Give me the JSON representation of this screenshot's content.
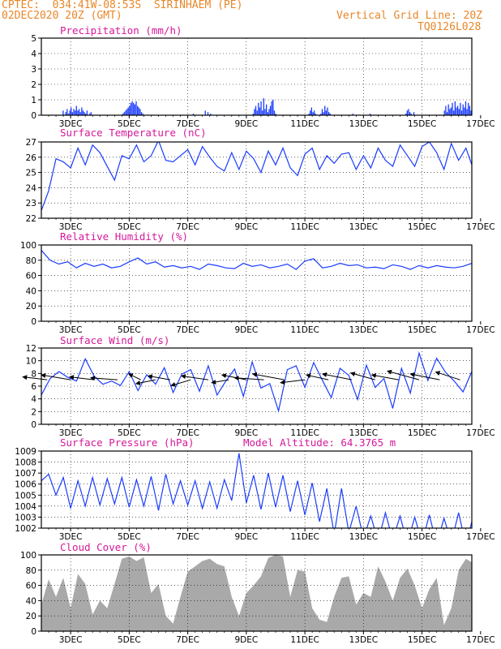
{
  "header": {
    "source": "CPTEC:  034:41W-08:53S  SIRINHAEM (PE)",
    "datetime": "02DEC2020 20Z (GMT)",
    "grid_note": "Vertical Grid Line: 20Z",
    "code": "TQ0126L028"
  },
  "colors": {
    "line": "#1a3cff",
    "title": "#d6189a",
    "header": "#e8872a",
    "cloud": "#a9a9a9",
    "wind": "#000000"
  },
  "chart_data": [
    {
      "name": "precipitation",
      "type": "bar",
      "title": "Precipitation (mm/h)",
      "x_ticks": [
        "3DEC",
        "5DEC",
        "7DEC",
        "9DEC",
        "11DEC",
        "13DEC",
        "15DEC",
        "17DEC"
      ],
      "xlim": [
        0,
        14.7
      ],
      "ylim": [
        0,
        5
      ],
      "y_ticks": [
        0,
        1,
        2,
        3,
        4,
        5
      ],
      "grid": true,
      "values": [
        0,
        0,
        0,
        0,
        0,
        0,
        0,
        0,
        0,
        0,
        0,
        0,
        0,
        0,
        0,
        0,
        0.3,
        0,
        0.2,
        0.4,
        0.1,
        0.3,
        0.5,
        0.2,
        0.4,
        0.3,
        0.6,
        0.3,
        0.4,
        0.2,
        0.5,
        0.3,
        0.2,
        0.1,
        0.3,
        0,
        0.1,
        0.2,
        0,
        0,
        0,
        0,
        0,
        0,
        0,
        0,
        0,
        0,
        0,
        0,
        0,
        0,
        0,
        0,
        0,
        0,
        0,
        0,
        0,
        0,
        0,
        0.1,
        0.2,
        0.3,
        0.4,
        0.5,
        0.6,
        0.8,
        0.9,
        0.8,
        0.7,
        0.9,
        0.6,
        0.5,
        0.4,
        0.2,
        0.1,
        0,
        0,
        0,
        0,
        0,
        0,
        0,
        0,
        0,
        0,
        0,
        0,
        0,
        0,
        0,
        0,
        0,
        0,
        0,
        0,
        0,
        0,
        0,
        0,
        0,
        0,
        0,
        0,
        0,
        0,
        0,
        0,
        0,
        0,
        0,
        0,
        0,
        0.1,
        0,
        0,
        0,
        0,
        0,
        0,
        0,
        0,
        0.3,
        0,
        0.2,
        0,
        0.1,
        0,
        0,
        0,
        0,
        0,
        0,
        0,
        0,
        0,
        0,
        0,
        0,
        0,
        0,
        0,
        0,
        0,
        0,
        0,
        0,
        0,
        0,
        0,
        0,
        0,
        0,
        0,
        0,
        0,
        0,
        0,
        0.1,
        0.4,
        0.6,
        0.3,
        0.8,
        0.5,
        0.9,
        0.3,
        1.1,
        0.4,
        0.7,
        0.2,
        0.4,
        0.6,
        0.9,
        1.0,
        0.3,
        0.1,
        0,
        0,
        0,
        0,
        0,
        0,
        0,
        0,
        0,
        0,
        0,
        0,
        0,
        0,
        0,
        0,
        0,
        0,
        0,
        0,
        0,
        0,
        0,
        0,
        0.1,
        0.3,
        0.5,
        0.2,
        0.3,
        0.1,
        0,
        0,
        0,
        0.1,
        0.4,
        0.2,
        0.6,
        0.3,
        0.5,
        0.2,
        0.1,
        0,
        0,
        0,
        0,
        0,
        0,
        0,
        0,
        0,
        0,
        0,
        0,
        0,
        0,
        0,
        0,
        0.1,
        0,
        0,
        0,
        0,
        0,
        0,
        0,
        0,
        0,
        0,
        0,
        0,
        0.1,
        0,
        0,
        0,
        0,
        0,
        0,
        0,
        0,
        0,
        0,
        0,
        0,
        0,
        0,
        0,
        0,
        0,
        0,
        0,
        0,
        0,
        0,
        0,
        0,
        0,
        0,
        0.1,
        0.3,
        0.4,
        0.2,
        0.1,
        0,
        0.2,
        0,
        0,
        0,
        0,
        0,
        0,
        0,
        0,
        0,
        0,
        0,
        0,
        0,
        0,
        0,
        0,
        0,
        0,
        0,
        0,
        0,
        0,
        0.3,
        0.6,
        0.2,
        0.7,
        0.4,
        0.5,
        0.8,
        0.3,
        0.9,
        0.5,
        0.6,
        0.4,
        0.8,
        0.3,
        0.7,
        0.5,
        0.9,
        0.4,
        0.8,
        0.6,
        0.3
      ]
    },
    {
      "name": "surface-temperature",
      "type": "line",
      "title": "Surface Temperature (nC)",
      "x_ticks": [
        "3DEC",
        "5DEC",
        "7DEC",
        "9DEC",
        "11DEC",
        "13DEC",
        "15DEC",
        "17DEC"
      ],
      "xlim": [
        0,
        14.7
      ],
      "ylim": [
        22,
        27
      ],
      "y_ticks": [
        22,
        23,
        24,
        25,
        26,
        27
      ],
      "grid": true,
      "x": [
        0,
        0.25,
        0.5,
        0.75,
        1.0,
        1.25,
        1.5,
        1.75,
        2.0,
        2.25,
        2.5,
        2.75,
        3.0,
        3.25,
        3.5,
        3.75,
        4.0,
        4.25,
        4.5,
        4.75,
        5.0,
        5.25,
        5.5,
        5.75,
        6.0,
        6.25,
        6.5,
        6.75,
        7.0,
        7.25,
        7.5,
        7.75,
        8.0,
        8.25,
        8.5,
        8.75,
        9.0,
        9.25,
        9.5,
        9.75,
        10.0,
        10.25,
        10.5,
        10.75,
        11.0,
        11.25,
        11.5,
        11.75,
        12.0,
        12.25,
        12.5,
        12.75,
        13.0,
        13.25,
        13.5,
        13.75,
        14.0,
        14.25,
        14.5,
        14.7
      ],
      "values": [
        22.5,
        23.8,
        25.9,
        25.7,
        25.3,
        26.6,
        25.5,
        26.8,
        26.3,
        25.4,
        24.5,
        26.1,
        25.9,
        26.8,
        25.7,
        26.1,
        27.1,
        25.8,
        25.7,
        26.1,
        26.5,
        25.5,
        26.7,
        26.0,
        25.4,
        25.1,
        26.3,
        25.2,
        26.4,
        25.9,
        25.0,
        26.4,
        25.5,
        26.6,
        25.3,
        24.8,
        26.2,
        26.6,
        25.2,
        26.1,
        25.6,
        26.2,
        26.3,
        25.2,
        26.1,
        25.3,
        26.6,
        25.8,
        25.4,
        26.8,
        26.1,
        25.4,
        26.7,
        27.0,
        26.3,
        25.2,
        26.9,
        25.8,
        26.6,
        25.5
      ]
    },
    {
      "name": "relative-humidity",
      "type": "line",
      "title": "Relative Humidity (%)",
      "x_ticks": [
        "3DEC",
        "5DEC",
        "7DEC",
        "9DEC",
        "11DEC",
        "13DEC",
        "15DEC",
        "17DEC"
      ],
      "xlim": [
        0,
        14.7
      ],
      "ylim": [
        0,
        100
      ],
      "y_ticks": [
        0,
        20,
        40,
        60,
        80,
        100
      ],
      "grid": true,
      "x": [
        0,
        0.3,
        0.6,
        0.9,
        1.2,
        1.5,
        1.8,
        2.1,
        2.4,
        2.7,
        3.0,
        3.3,
        3.6,
        3.9,
        4.2,
        4.5,
        4.8,
        5.1,
        5.4,
        5.7,
        6.0,
        6.3,
        6.6,
        6.9,
        7.2,
        7.5,
        7.8,
        8.1,
        8.4,
        8.7,
        9.0,
        9.3,
        9.6,
        9.9,
        10.2,
        10.5,
        10.8,
        11.1,
        11.4,
        11.7,
        12.0,
        12.3,
        12.6,
        12.9,
        13.2,
        13.5,
        13.8,
        14.1,
        14.4,
        14.7
      ],
      "values": [
        93,
        80,
        75,
        78,
        70,
        76,
        72,
        75,
        70,
        72,
        78,
        83,
        75,
        78,
        71,
        73,
        70,
        72,
        68,
        75,
        73,
        70,
        69,
        76,
        72,
        74,
        70,
        72,
        75,
        68,
        79,
        82,
        70,
        72,
        76,
        73,
        74,
        70,
        71,
        69,
        74,
        72,
        68,
        73,
        70,
        73,
        71,
        70,
        72,
        76
      ]
    },
    {
      "name": "surface-wind",
      "type": "line",
      "title": "Surface Wind (m/s)",
      "x_ticks": [
        "3DEC",
        "5DEC",
        "7DEC",
        "9DEC",
        "11DEC",
        "13DEC",
        "15DEC",
        "17DEC"
      ],
      "xlim": [
        0,
        14.7
      ],
      "ylim": [
        0,
        12
      ],
      "y_ticks": [
        0,
        2,
        4,
        6,
        8,
        10,
        12
      ],
      "grid": true,
      "x": [
        0,
        0.3,
        0.6,
        0.9,
        1.2,
        1.5,
        1.8,
        2.1,
        2.4,
        2.7,
        3.0,
        3.3,
        3.6,
        3.9,
        4.2,
        4.5,
        4.8,
        5.1,
        5.4,
        5.7,
        6.0,
        6.3,
        6.6,
        6.9,
        7.2,
        7.5,
        7.8,
        8.1,
        8.4,
        8.7,
        9.0,
        9.3,
        9.6,
        9.9,
        10.2,
        10.5,
        10.8,
        11.1,
        11.4,
        11.7,
        12.0,
        12.3,
        12.6,
        12.9,
        13.2,
        13.5,
        13.8,
        14.1,
        14.4,
        14.7
      ],
      "values": [
        4.6,
        7.2,
        8.3,
        7.4,
        6.8,
        10.3,
        7.6,
        6.3,
        6.8,
        6.1,
        8.3,
        5.3,
        7.8,
        6.3,
        8.9,
        5.0,
        7.9,
        8.6,
        5.2,
        9.2,
        4.6,
        6.8,
        8.7,
        4.4,
        9.8,
        5.7,
        6.4,
        2.1,
        8.6,
        9.2,
        5.8,
        9.7,
        6.9,
        4.2,
        8.8,
        7.7,
        3.9,
        9.3,
        5.8,
        7.2,
        2.5,
        8.8,
        4.9,
        11.2,
        6.9,
        10.4,
        8.2,
        6.8,
        5.1,
        8.3
      ],
      "wind_vectors": [
        {
          "x": 0.2,
          "u": -1.0,
          "v": 0.3
        },
        {
          "x": 1.0,
          "u": -1.2,
          "v": 0.5
        },
        {
          "x": 1.8,
          "u": -1.0,
          "v": 0.3
        },
        {
          "x": 2.6,
          "u": -1.1,
          "v": 0.2
        },
        {
          "x": 3.4,
          "u": -0.5,
          "v": 0.6
        },
        {
          "x": 3.9,
          "u": -0.8,
          "v": -0.4
        },
        {
          "x": 4.4,
          "u": -0.9,
          "v": 0.4
        },
        {
          "x": 5.1,
          "u": -0.8,
          "v": -0.6
        },
        {
          "x": 5.7,
          "u": -1.1,
          "v": 0.4
        },
        {
          "x": 6.4,
          "u": -0.7,
          "v": -0.3
        },
        {
          "x": 7.0,
          "u": -1.0,
          "v": 0.5
        },
        {
          "x": 7.6,
          "u": -1.2,
          "v": 0.2
        },
        {
          "x": 8.3,
          "u": -1.3,
          "v": 0.6
        },
        {
          "x": 9.0,
          "u": -1.0,
          "v": -0.3
        },
        {
          "x": 9.8,
          "u": -0.9,
          "v": 0.5
        },
        {
          "x": 10.6,
          "u": -1.2,
          "v": 0.6
        },
        {
          "x": 11.4,
          "u": -1.0,
          "v": 0.7
        },
        {
          "x": 12.2,
          "u": -1.1,
          "v": 0.5
        },
        {
          "x": 12.9,
          "u": -1.3,
          "v": 0.9
        },
        {
          "x": 13.6,
          "u": -1.2,
          "v": 0.6
        },
        {
          "x": 14.3,
          "u": -1.0,
          "v": 0.8
        }
      ]
    },
    {
      "name": "surface-pressure",
      "type": "line",
      "title": "Surface Pressure (hPa)",
      "subtitle": "Model Altitude: 64.3765 m",
      "x_ticks": [
        "3DEC",
        "5DEC",
        "7DEC",
        "9DEC",
        "11DEC",
        "13DEC",
        "15DEC",
        "17DEC"
      ],
      "xlim": [
        0,
        14.7
      ],
      "ylim": [
        1002,
        1009
      ],
      "y_ticks": [
        1002,
        1003,
        1004,
        1005,
        1006,
        1007,
        1008,
        1009
      ],
      "grid": true,
      "x": [
        0,
        0.25,
        0.5,
        0.75,
        1.0,
        1.25,
        1.5,
        1.75,
        2.0,
        2.25,
        2.5,
        2.75,
        3.0,
        3.25,
        3.5,
        3.75,
        4.0,
        4.25,
        4.5,
        4.75,
        5.0,
        5.25,
        5.5,
        5.75,
        6.0,
        6.25,
        6.5,
        6.75,
        7.0,
        7.25,
        7.5,
        7.75,
        8.0,
        8.25,
        8.5,
        8.75,
        9.0,
        9.25,
        9.5,
        9.75,
        10.0,
        10.25,
        10.5,
        10.75,
        11.0,
        11.25,
        11.5,
        11.75,
        12.0,
        12.25,
        12.5,
        12.75,
        13.0,
        13.25,
        13.5,
        13.75,
        14.0,
        14.25,
        14.5,
        14.7
      ],
      "values": [
        1006.3,
        1006.9,
        1005.0,
        1006.6,
        1003.8,
        1006.3,
        1004.0,
        1006.6,
        1004.1,
        1006.5,
        1004.2,
        1006.6,
        1003.9,
        1006.4,
        1004.0,
        1006.7,
        1003.6,
        1006.9,
        1004.2,
        1006.3,
        1004.1,
        1006.3,
        1003.8,
        1006.2,
        1003.8,
        1006.4,
        1004.5,
        1008.8,
        1004.3,
        1006.8,
        1003.7,
        1007.0,
        1003.9,
        1006.8,
        1003.5,
        1006.3,
        1003.2,
        1006.1,
        1002.6,
        1005.6,
        1001.4,
        1005.6,
        1001.6,
        1004.0,
        1001.1,
        1003.1,
        1000.8,
        1003.4,
        1000.9,
        1003.1,
        1000.6,
        1003.0,
        1000.7,
        1003.2,
        1000.5,
        1002.9,
        1000.7,
        1003.4,
        1000.4,
        1002.6
      ]
    },
    {
      "name": "cloud-cover",
      "type": "area",
      "title": "Cloud Cover (%)",
      "x_ticks": [
        "3DEC",
        "5DEC",
        "7DEC",
        "9DEC",
        "11DEC",
        "13DEC",
        "15DEC",
        "17DEC"
      ],
      "xlim": [
        0,
        14.7
      ],
      "ylim": [
        0,
        100
      ],
      "y_ticks": [
        0,
        20,
        40,
        60,
        80,
        100
      ],
      "grid": true,
      "x": [
        0,
        0.25,
        0.5,
        0.75,
        1.0,
        1.25,
        1.5,
        1.75,
        2.0,
        2.25,
        2.5,
        2.75,
        3.0,
        3.25,
        3.5,
        3.75,
        4.0,
        4.25,
        4.5,
        4.75,
        5.0,
        5.25,
        5.5,
        5.75,
        6.0,
        6.25,
        6.5,
        6.75,
        7.0,
        7.25,
        7.5,
        7.75,
        8.0,
        8.25,
        8.5,
        8.75,
        9.0,
        9.25,
        9.5,
        9.75,
        10.0,
        10.25,
        10.5,
        10.75,
        11.0,
        11.25,
        11.5,
        11.75,
        12.0,
        12.25,
        12.5,
        12.75,
        13.0,
        13.25,
        13.5,
        13.75,
        14.0,
        14.25,
        14.5,
        14.7
      ],
      "values": [
        35,
        68,
        45,
        70,
        30,
        75,
        62,
        22,
        40,
        30,
        62,
        95,
        98,
        92,
        97,
        50,
        62,
        20,
        10,
        45,
        78,
        85,
        92,
        95,
        88,
        85,
        45,
        20,
        50,
        60,
        72,
        96,
        100,
        98,
        45,
        80,
        78,
        30,
        15,
        12,
        45,
        70,
        72,
        35,
        50,
        45,
        85,
        65,
        40,
        70,
        82,
        60,
        30,
        55,
        70,
        8,
        30,
        80,
        95,
        90
      ]
    }
  ]
}
